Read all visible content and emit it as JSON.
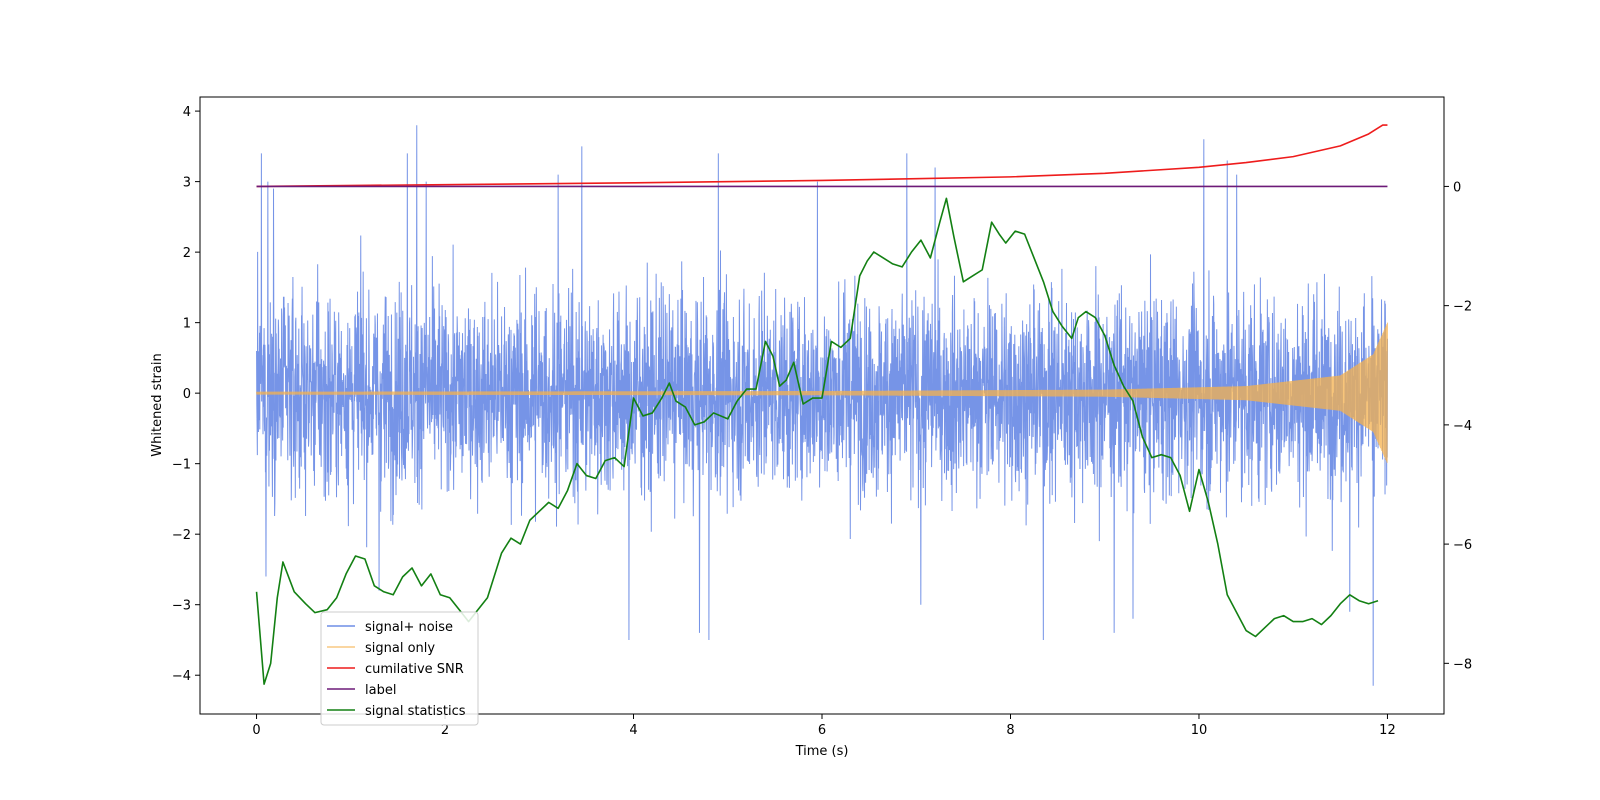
{
  "chart_data": {
    "type": "line",
    "title": "",
    "xlabel": "Time (s)",
    "ylabel": "Whitened strain",
    "y2label": "",
    "xlim": [
      -0.6,
      12.6
    ],
    "ylim": [
      -4.55,
      4.2
    ],
    "y2lim": [
      -8.85,
      1.5
    ],
    "x_ticks": [
      0,
      2,
      4,
      6,
      8,
      10,
      12
    ],
    "x_tick_labels": [
      "0",
      "2",
      "4",
      "6",
      "8",
      "10",
      "12"
    ],
    "y_ticks": [
      -4,
      -3,
      -2,
      -1,
      0,
      1,
      2,
      3,
      4
    ],
    "y_tick_labels": [
      "−4",
      "−3",
      "−2",
      "−1",
      "0",
      "1",
      "2",
      "3",
      "4"
    ],
    "y2_ticks": [
      -8,
      -6,
      -4,
      -2,
      0
    ],
    "y2_tick_labels": [
      "−8",
      "−6",
      "−4",
      "−2",
      "0"
    ],
    "grid": false,
    "legend_position": "lower-left",
    "colors": {
      "signal_noise": "#6f8ee6",
      "signal_only": "#f5b24d",
      "cumulative_snr": "#ee1c1c",
      "label": "#6d1a78",
      "signal_statistics": "#138013"
    },
    "series": [
      {
        "name": "signal+ noise",
        "axis": "left",
        "color": "#6f8ee6",
        "x_range": [
          0,
          12
        ],
        "typical_band": [
          -1.6,
          1.5
        ],
        "spikes": [
          {
            "x": 0.05,
            "y": 3.4
          },
          {
            "x": 0.12,
            "y": 3.0
          },
          {
            "x": 0.18,
            "y": 2.9
          },
          {
            "x": 1.6,
            "y": 3.4
          },
          {
            "x": 1.7,
            "y": 3.8
          },
          {
            "x": 1.8,
            "y": 3.0
          },
          {
            "x": 3.2,
            "y": 3.1
          },
          {
            "x": 3.45,
            "y": 3.5
          },
          {
            "x": 4.9,
            "y": 3.4
          },
          {
            "x": 5.95,
            "y": 3.0
          },
          {
            "x": 6.9,
            "y": 3.4
          },
          {
            "x": 7.2,
            "y": 3.2
          },
          {
            "x": 10.05,
            "y": 3.6
          },
          {
            "x": 10.3,
            "y": 3.3
          },
          {
            "x": 10.4,
            "y": 3.1
          },
          {
            "x": 0.1,
            "y": -2.6
          },
          {
            "x": 1.3,
            "y": -2.8
          },
          {
            "x": 3.95,
            "y": -3.5
          },
          {
            "x": 4.7,
            "y": -3.4
          },
          {
            "x": 4.8,
            "y": -3.5
          },
          {
            "x": 7.05,
            "y": -3.0
          },
          {
            "x": 8.35,
            "y": -3.5
          },
          {
            "x": 9.1,
            "y": -3.4
          },
          {
            "x": 9.3,
            "y": -3.2
          },
          {
            "x": 11.6,
            "y": -3.1
          },
          {
            "x": 11.85,
            "y": -4.15
          }
        ]
      },
      {
        "name": "signal only",
        "axis": "left",
        "color": "#f5b24d",
        "x_range": [
          0,
          12
        ],
        "envelope": [
          {
            "x": 0,
            "y": 0.02
          },
          {
            "x": 6,
            "y": 0.03
          },
          {
            "x": 9,
            "y": 0.05
          },
          {
            "x": 10.5,
            "y": 0.1
          },
          {
            "x": 11.5,
            "y": 0.25
          },
          {
            "x": 11.85,
            "y": 0.55
          },
          {
            "x": 12.0,
            "y": 1.0
          }
        ]
      },
      {
        "name": "cumilative SNR",
        "axis": "right",
        "color": "#ee1c1c",
        "x": [
          0,
          2,
          4,
          6,
          7,
          8,
          9,
          10,
          10.5,
          11,
          11.5,
          11.8,
          11.95,
          12.0
        ],
        "y": [
          0,
          0.03,
          0.06,
          0.1,
          0.13,
          0.16,
          0.22,
          0.32,
          0.4,
          0.5,
          0.68,
          0.88,
          1.03,
          1.03
        ]
      },
      {
        "name": "label",
        "axis": "right",
        "color": "#6d1a78",
        "x": [
          0,
          12
        ],
        "y": [
          0,
          0
        ]
      },
      {
        "name": "signal statistics",
        "axis": "right",
        "color": "#138013",
        "x": [
          0.0,
          0.08,
          0.15,
          0.22,
          0.28,
          0.4,
          0.52,
          0.62,
          0.75,
          0.85,
          0.95,
          1.05,
          1.15,
          1.25,
          1.35,
          1.45,
          1.55,
          1.65,
          1.75,
          1.85,
          1.95,
          2.05,
          2.15,
          2.25,
          2.35,
          2.45,
          2.6,
          2.7,
          2.8,
          2.9,
          3.0,
          3.1,
          3.2,
          3.3,
          3.4,
          3.5,
          3.6,
          3.7,
          3.8,
          3.9,
          4.0,
          4.1,
          4.2,
          4.3,
          4.38,
          4.45,
          4.55,
          4.65,
          4.75,
          4.85,
          5.0,
          5.1,
          5.2,
          5.3,
          5.4,
          5.48,
          5.55,
          5.62,
          5.7,
          5.8,
          5.9,
          6.0,
          6.1,
          6.2,
          6.3,
          6.4,
          6.48,
          6.55,
          6.65,
          6.75,
          6.85,
          6.95,
          7.05,
          7.15,
          7.25,
          7.32,
          7.4,
          7.5,
          7.6,
          7.7,
          7.8,
          7.88,
          7.95,
          8.05,
          8.15,
          8.25,
          8.35,
          8.45,
          8.55,
          8.65,
          8.72,
          8.8,
          8.9,
          9.0,
          9.1,
          9.2,
          9.3,
          9.4,
          9.5,
          9.6,
          9.7,
          9.8,
          9.9,
          10.0,
          10.1,
          10.2,
          10.3,
          10.4,
          10.5,
          10.6,
          10.7,
          10.8,
          10.9,
          11.0,
          11.1,
          11.2,
          11.3,
          11.4,
          11.5,
          11.6,
          11.7,
          11.8,
          11.9
        ],
        "y": [
          -6.8,
          -8.35,
          -8.0,
          -6.9,
          -6.3,
          -6.8,
          -7.0,
          -7.15,
          -7.1,
          -6.9,
          -6.5,
          -6.2,
          -6.25,
          -6.7,
          -6.8,
          -6.85,
          -6.55,
          -6.4,
          -6.7,
          -6.5,
          -6.85,
          -6.9,
          -7.1,
          -7.3,
          -7.1,
          -6.9,
          -6.15,
          -5.9,
          -6.0,
          -5.6,
          -5.45,
          -5.3,
          -5.4,
          -5.1,
          -4.65,
          -4.85,
          -4.9,
          -4.6,
          -4.55,
          -4.7,
          -3.55,
          -3.85,
          -3.8,
          -3.55,
          -3.3,
          -3.6,
          -3.7,
          -4.0,
          -3.95,
          -3.8,
          -3.9,
          -3.6,
          -3.4,
          -3.4,
          -2.6,
          -2.85,
          -3.35,
          -3.25,
          -2.95,
          -3.65,
          -3.55,
          -3.55,
          -2.6,
          -2.7,
          -2.55,
          -1.5,
          -1.25,
          -1.1,
          -1.2,
          -1.3,
          -1.35,
          -1.1,
          -0.9,
          -1.2,
          -0.6,
          -0.2,
          -0.85,
          -1.6,
          -1.5,
          -1.4,
          -0.6,
          -0.8,
          -0.95,
          -0.75,
          -0.8,
          -1.2,
          -1.6,
          -2.1,
          -2.35,
          -2.55,
          -2.2,
          -2.1,
          -2.2,
          -2.5,
          -3.0,
          -3.35,
          -3.6,
          -4.2,
          -4.55,
          -4.5,
          -4.55,
          -4.85,
          -5.45,
          -4.75,
          -5.3,
          -6.0,
          -6.85,
          -7.15,
          -7.45,
          -7.55,
          -7.4,
          -7.25,
          -7.2,
          -7.3,
          -7.3,
          -7.25,
          -7.35,
          -7.2,
          -7.0,
          -6.85,
          -6.95,
          -7.0,
          -6.95
        ]
      }
    ]
  }
}
